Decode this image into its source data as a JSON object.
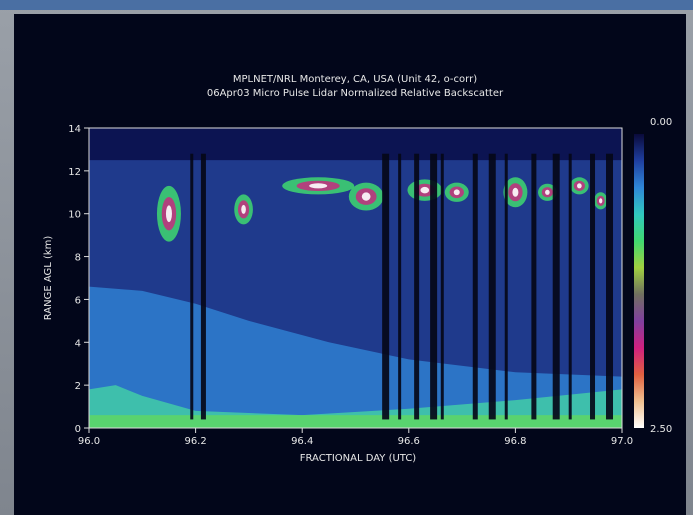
{
  "chart_data": {
    "type": "heatmap",
    "title": "MPLNET/NRL Monterey, CA, USA (Unit 42, o-corr)",
    "subtitle": "06Apr03 Micro Pulse Lidar Normalized Relative Backscatter",
    "xlabel": "FRACTIONAL DAY (UTC)",
    "ylabel": "RANGE AGL (km)",
    "xlim": [
      96.0,
      97.0
    ],
    "ylim": [
      0,
      14
    ],
    "x_ticks": [
      "96.0",
      "96.2",
      "96.4",
      "96.6",
      "96.8",
      "97.0"
    ],
    "y_ticks": [
      "0",
      "2",
      "4",
      "6",
      "8",
      "10",
      "12",
      "14"
    ],
    "colorbar": {
      "min_label": "0.00",
      "max_label": "2.50",
      "range": [
        0.0,
        2.5
      ],
      "colors": [
        "#0a0a3a",
        "#1f3fa0",
        "#2f86d8",
        "#30c8c0",
        "#40d870",
        "#a0d040",
        "#707060",
        "#8040a0",
        "#d02080",
        "#e06040",
        "#f0c090",
        "#ffffff"
      ]
    },
    "layers": {
      "boundary_layer_top_km": [
        {
          "x": 96.0,
          "y": 1.8
        },
        {
          "x": 96.05,
          "y": 2.0
        },
        {
          "x": 96.1,
          "y": 1.5
        },
        {
          "x": 96.2,
          "y": 0.8
        },
        {
          "x": 96.4,
          "y": 0.6
        },
        {
          "x": 96.6,
          "y": 0.9
        },
        {
          "x": 96.8,
          "y": 1.3
        },
        {
          "x": 97.0,
          "y": 1.8
        }
      ],
      "aerosol_layer_km": [
        {
          "x": 96.0,
          "y": 6.6
        },
        {
          "x": 96.1,
          "y": 6.4
        },
        {
          "x": 96.2,
          "y": 5.8
        },
        {
          "x": 96.3,
          "y": 5.0
        },
        {
          "x": 96.45,
          "y": 4.0
        },
        {
          "x": 96.6,
          "y": 3.2
        },
        {
          "x": 96.8,
          "y": 2.6
        },
        {
          "x": 97.0,
          "y": 2.4
        }
      ],
      "cirrus": [
        {
          "x": 96.15,
          "y": 10.0,
          "dx": 0.03,
          "dy": 2.6
        },
        {
          "x": 96.29,
          "y": 10.2,
          "dx": 0.02,
          "dy": 1.4
        },
        {
          "x": 96.43,
          "y": 11.3,
          "dx": 0.12,
          "dy": 0.8
        },
        {
          "x": 96.52,
          "y": 10.8,
          "dx": 0.05,
          "dy": 1.3
        },
        {
          "x": 96.63,
          "y": 11.1,
          "dx": 0.05,
          "dy": 1.0
        },
        {
          "x": 96.69,
          "y": 11.0,
          "dx": 0.03,
          "dy": 0.9
        },
        {
          "x": 96.8,
          "y": 11.0,
          "dx": 0.03,
          "dy": 1.4
        },
        {
          "x": 96.86,
          "y": 11.0,
          "dx": 0.02,
          "dy": 0.8
        },
        {
          "x": 96.92,
          "y": 11.3,
          "dx": 0.02,
          "dy": 0.8
        },
        {
          "x": 96.96,
          "y": 10.6,
          "dx": 0.01,
          "dy": 0.8
        }
      ],
      "data_gaps_x": [
        96.19,
        96.21,
        96.55,
        96.58,
        96.61,
        96.64,
        96.66,
        96.72,
        96.75,
        96.78,
        96.83,
        96.87,
        96.9,
        96.94,
        96.97
      ]
    }
  }
}
